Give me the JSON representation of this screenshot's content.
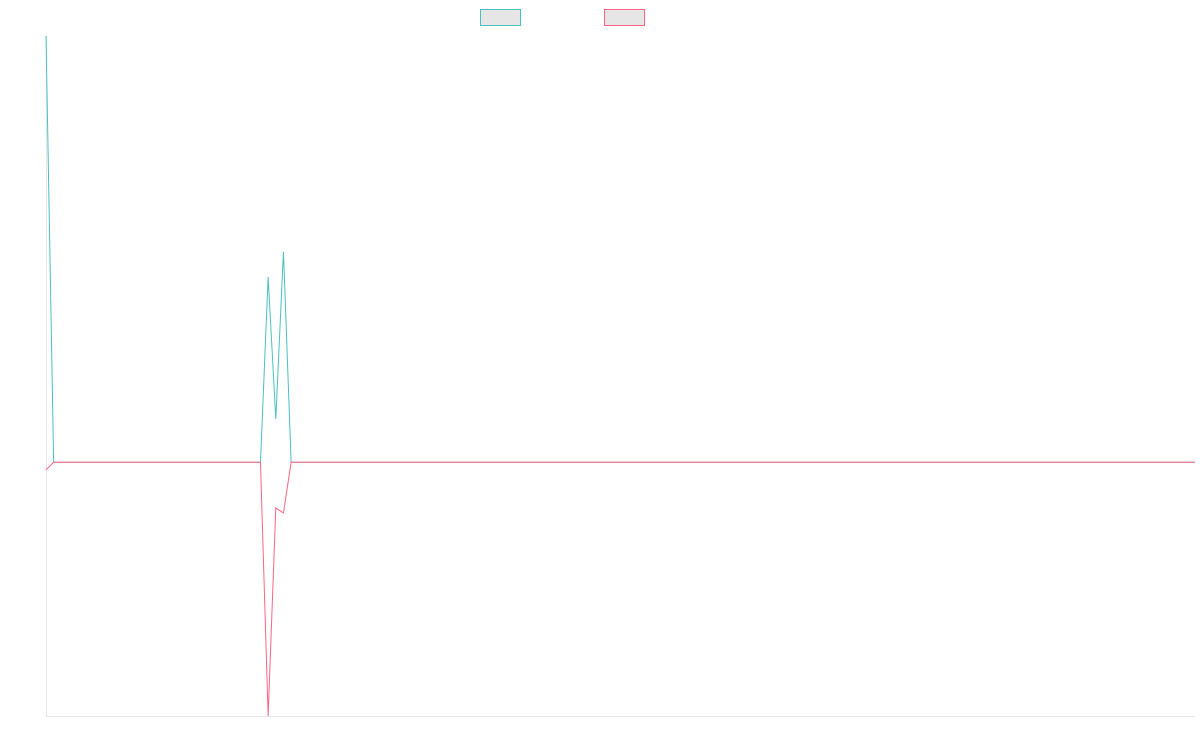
{
  "chart_data": {
    "type": "line",
    "title": "",
    "xlabel": "",
    "ylabel": "",
    "ylim": [
      -1,
      1.68
    ],
    "grid": false,
    "legend_position": "top-center",
    "colors": {
      "series_0": "#4bc0c0",
      "series_1": "#ff6384",
      "axis": "#e6e6e6",
      "legend_fill": "#e6e6e6"
    },
    "x": [
      0,
      1,
      2,
      3,
      4,
      5,
      6,
      7,
      8,
      9,
      10,
      11,
      12,
      13,
      14,
      15,
      16,
      17,
      18,
      19,
      20,
      21,
      22,
      23,
      24,
      25,
      26,
      27,
      28,
      29,
      30,
      31,
      32,
      33,
      34,
      35,
      36,
      37,
      38,
      39,
      40,
      41,
      42,
      43,
      44,
      45,
      46,
      47,
      48,
      49,
      50,
      51,
      52,
      53,
      54,
      55,
      56,
      57,
      58,
      59,
      60,
      61,
      62,
      63,
      64,
      65,
      66,
      67,
      68,
      69,
      70,
      71,
      72,
      73,
      74,
      75,
      76,
      77,
      78,
      79,
      80,
      81,
      82,
      83,
      84,
      85,
      86,
      87,
      88,
      89,
      90,
      91,
      92,
      93,
      94,
      95,
      96,
      97,
      98,
      99,
      100,
      101,
      102,
      103,
      104,
      105,
      106,
      107,
      108,
      109,
      110,
      111,
      112,
      113,
      114,
      115,
      116,
      117,
      118,
      119,
      120,
      121,
      122,
      123,
      124,
      125,
      126,
      127,
      128,
      129,
      130,
      131,
      132,
      133,
      134,
      135,
      136,
      137,
      138,
      139,
      140,
      141,
      142,
      143,
      144,
      145,
      146,
      147,
      148,
      149,
      150
    ],
    "series": [
      {
        "name": "",
        "values": [
          1.68,
          0,
          0,
          0,
          0,
          0,
          0,
          0,
          0,
          0,
          0,
          0,
          0,
          0,
          0,
          0,
          0,
          0,
          0,
          0,
          0,
          0,
          0,
          0,
          0,
          0,
          0,
          0,
          0,
          0.73,
          0.17,
          0.83,
          0,
          0,
          0,
          0,
          0,
          0,
          0,
          0,
          0,
          0,
          0,
          0,
          0,
          0,
          0,
          0,
          0,
          0,
          0,
          0,
          0,
          0,
          0,
          0,
          0,
          0,
          0,
          0,
          0,
          0,
          0,
          0,
          0,
          0,
          0,
          0,
          0,
          0,
          0,
          0,
          0,
          0,
          0,
          0,
          0,
          0,
          0,
          0,
          0,
          0,
          0,
          0,
          0,
          0,
          0,
          0,
          0,
          0,
          0,
          0,
          0,
          0,
          0,
          0,
          0,
          0,
          0,
          0,
          0,
          0,
          0,
          0,
          0,
          0,
          0,
          0,
          0,
          0,
          0,
          0,
          0,
          0,
          0,
          0,
          0,
          0,
          0,
          0,
          0,
          0,
          0,
          0,
          0,
          0,
          0,
          0,
          0,
          0,
          0,
          0,
          0,
          0,
          0,
          0,
          0,
          0,
          0,
          0,
          0,
          0,
          0,
          0,
          0,
          0,
          0,
          0,
          0,
          0,
          0
        ]
      },
      {
        "name": "",
        "values": [
          -0.03,
          0,
          0,
          0,
          0,
          0,
          0,
          0,
          0,
          0,
          0,
          0,
          0,
          0,
          0,
          0,
          0,
          0,
          0,
          0,
          0,
          0,
          0,
          0,
          0,
          0,
          0,
          0,
          0,
          -1,
          -0.18,
          -0.2,
          0,
          0,
          0,
          0,
          0,
          0,
          0,
          0,
          0,
          0,
          0,
          0,
          0,
          0,
          0,
          0,
          0,
          0,
          0,
          0,
          0,
          0,
          0,
          0,
          0,
          0,
          0,
          0,
          0,
          0,
          0,
          0,
          0,
          0,
          0,
          0,
          0,
          0,
          0,
          0,
          0,
          0,
          0,
          0,
          0,
          0,
          0,
          0,
          0,
          0,
          0,
          0,
          0,
          0,
          0,
          0,
          0,
          0,
          0,
          0,
          0,
          0,
          0,
          0,
          0,
          0,
          0,
          0,
          0,
          0,
          0,
          0,
          0,
          0,
          0,
          0,
          0,
          0,
          0,
          0,
          0,
          0,
          0,
          0,
          0,
          0,
          0,
          0,
          0,
          0,
          0,
          0,
          0,
          0,
          0,
          0,
          0,
          0,
          0,
          0,
          0,
          0,
          0,
          0,
          0,
          0,
          0,
          0,
          0,
          0,
          0,
          0,
          0,
          0,
          0,
          0,
          0,
          0,
          0
        ]
      }
    ]
  }
}
